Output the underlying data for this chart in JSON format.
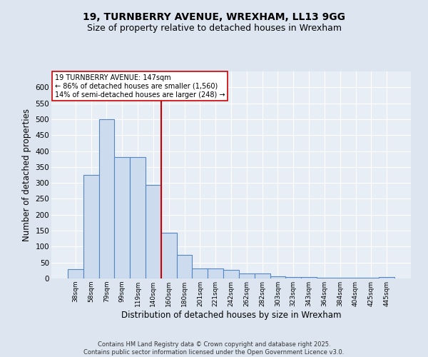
{
  "title_line1": "19, TURNBERRY AVENUE, WREXHAM, LL13 9GG",
  "title_line2": "Size of property relative to detached houses in Wrexham",
  "xlabel": "Distribution of detached houses by size in Wrexham",
  "ylabel": "Number of detached properties",
  "bar_values": [
    30,
    325,
    500,
    380,
    380,
    293,
    143,
    75,
    32,
    32,
    28,
    16,
    16,
    7,
    5,
    5,
    3,
    3,
    3,
    3,
    5
  ],
  "bin_labels": [
    "38sqm",
    "58sqm",
    "79sqm",
    "99sqm",
    "119sqm",
    "140sqm",
    "160sqm",
    "180sqm",
    "201sqm",
    "221sqm",
    "242sqm",
    "262sqm",
    "282sqm",
    "303sqm",
    "323sqm",
    "343sqm",
    "364sqm",
    "384sqm",
    "404sqm",
    "425sqm",
    "445sqm"
  ],
  "bar_color": "#ccdcee",
  "bar_edge_color": "#5585c5",
  "bg_color": "#dde6f0",
  "plot_bg_color": "#e8eef6",
  "grid_color": "#ffffff",
  "vline_x": 5.5,
  "vline_color": "#cc0000",
  "annotation_text": "19 TURNBERRY AVENUE: 147sqm\n← 86% of detached houses are smaller (1,560)\n14% of semi-detached houses are larger (248) →",
  "annotation_box_color": "#ffffff",
  "annotation_box_edge": "#cc0000",
  "ylim": [
    0,
    650
  ],
  "yticks": [
    0,
    50,
    100,
    150,
    200,
    250,
    300,
    350,
    400,
    450,
    500,
    550,
    600
  ],
  "footnote": "Contains HM Land Registry data © Crown copyright and database right 2025.\nContains public sector information licensed under the Open Government Licence v3.0.",
  "title_fontsize": 10,
  "subtitle_fontsize": 9,
  "footnote_fontsize": 6
}
